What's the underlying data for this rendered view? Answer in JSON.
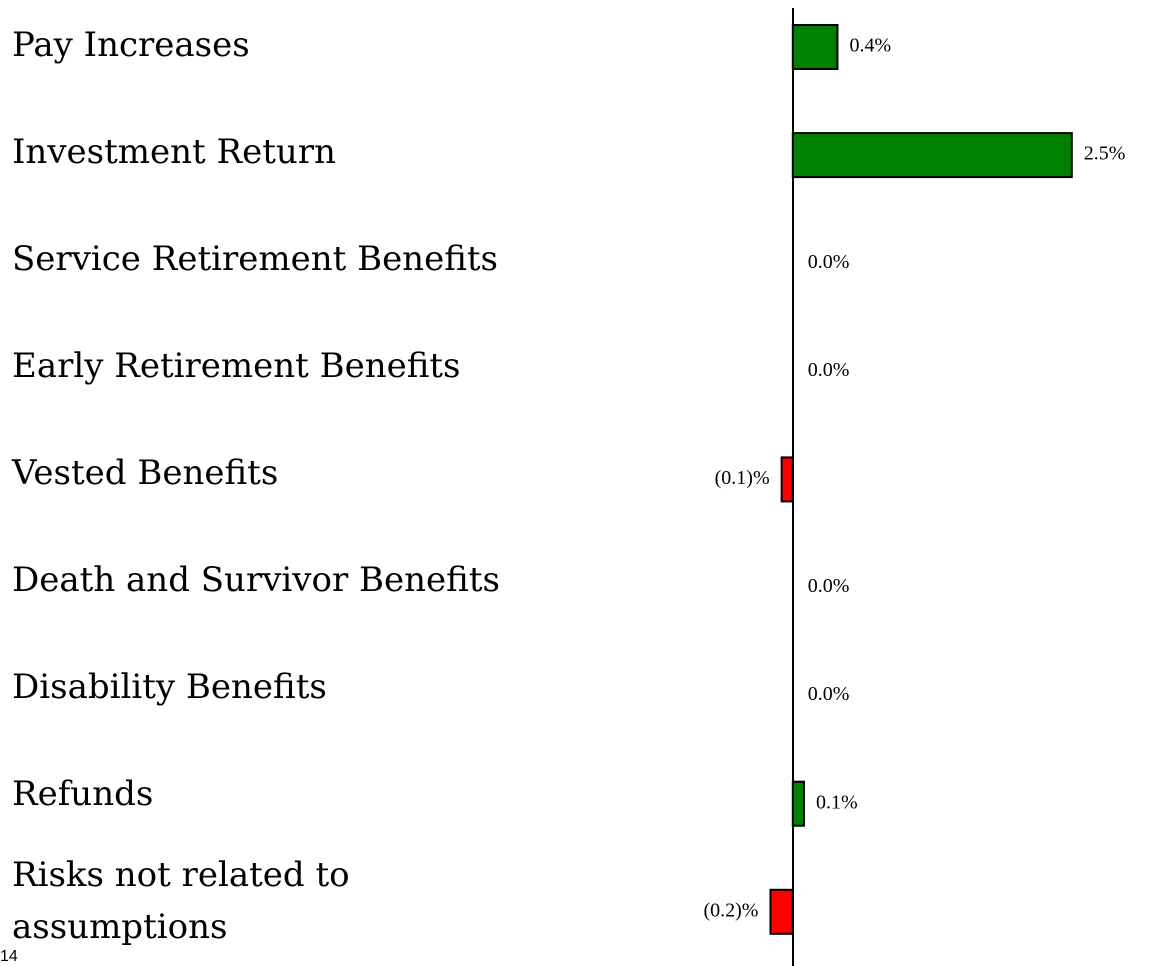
{
  "chart_data": {
    "type": "barh",
    "categories": [
      "Pay Increases",
      "Investment Return",
      "Service Retirement Benefits",
      "Early Retirement Benefits",
      "Vested Benefits",
      "Death and Survivor Benefits",
      "Disability Benefits",
      "Refunds",
      "Risks not related to assumptions"
    ],
    "values": [
      0.4,
      2.5,
      0,
      0,
      -0.1,
      0,
      0,
      0.1,
      -0.2
    ],
    "value_labels": [
      "0.4%",
      "2.5%",
      "0.0%",
      "0.0%",
      "(0.1)%",
      "0.0%",
      "0.0%",
      "0.1%",
      "(0.2)%"
    ],
    "colors": [
      "#008000",
      "#008000",
      "#008000",
      "#008000",
      "#ff0000",
      "#008000",
      "#008000",
      "#008000",
      "#ff0000"
    ],
    "xlim": [
      -0.5,
      3.0
    ],
    "page_number": "14"
  }
}
